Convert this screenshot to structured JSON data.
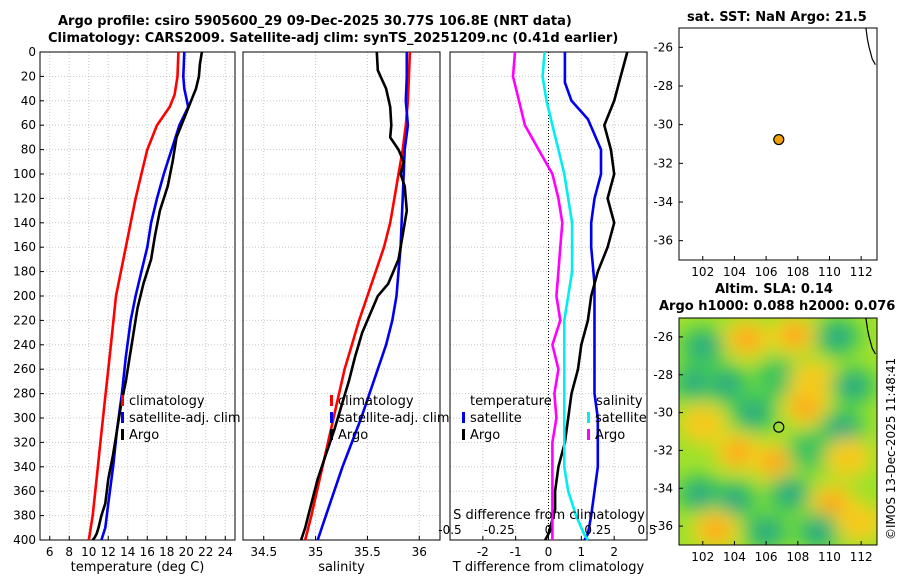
{
  "titles": {
    "line1": "Argo profile: csiro 5905600_29 09-Dec-2025 30.77S 106.8E (NRT data)",
    "line2": "Climatology: CARS2009. Satellite-adj clim: synTS_20251209.nc (0.41d earlier)",
    "sst": "sat. SST: NaN Argo: 21.5",
    "altim1": "Altim. SLA: 0.14",
    "altim2": "Argo h1000: 0.088 h2000: 0.076"
  },
  "credit": "©IMOS 13-Dec-2025 11:48:41",
  "colors": {
    "climatology": "#ff0000",
    "satellite": "#0000ee",
    "argo": "#000000",
    "temp_diff": "#00eeee",
    "sal_diff": "#ff00ff",
    "marker": "#f0a000"
  },
  "chart_data": [
    {
      "type": "line",
      "id": "temperature",
      "xlabel": "temperature (deg C)",
      "ylabel": "",
      "xlim": [
        5,
        25
      ],
      "ylim": [
        400,
        0
      ],
      "xticks": [
        "6",
        "8",
        "10",
        "12",
        "14",
        "16",
        "18",
        "20",
        "22",
        "24"
      ],
      "xtick_values": [
        6,
        8,
        10,
        12,
        14,
        16,
        18,
        20,
        22,
        24
      ],
      "yticks": [
        "0",
        "20",
        "40",
        "60",
        "80",
        "100",
        "120",
        "140",
        "160",
        "180",
        "200",
        "220",
        "240",
        "260",
        "280",
        "300",
        "320",
        "340",
        "360",
        "380",
        "400"
      ],
      "ytick_values": [
        0,
        20,
        40,
        60,
        80,
        100,
        120,
        140,
        160,
        180,
        200,
        220,
        240,
        260,
        280,
        300,
        320,
        340,
        360,
        380,
        400
      ],
      "legend": [
        "climatology",
        "satellite-adj. clim",
        "Argo"
      ],
      "series": [
        {
          "name": "climatology",
          "color": "#ff0000",
          "x": [
            19.2,
            19.1,
            18.8,
            18.3,
            17.0,
            16.0,
            15.4,
            14.8,
            14.3,
            13.8,
            13.3,
            12.8,
            12.4,
            12.0,
            11.6,
            11.2,
            10.8,
            10.4,
            10.0
          ],
          "depth": [
            0,
            20,
            35,
            45,
            60,
            80,
            100,
            120,
            140,
            160,
            180,
            200,
            230,
            260,
            290,
            320,
            350,
            380,
            400
          ]
        },
        {
          "name": "satellite-adj. clim",
          "color": "#0000ee",
          "x": [
            19.8,
            19.7,
            19.8,
            20.2,
            19.3,
            18.5,
            17.7,
            17.0,
            16.4,
            16.0,
            15.4,
            14.8,
            14.3,
            13.8,
            13.4,
            12.9,
            12.5,
            12.0,
            11.7,
            11.3
          ],
          "depth": [
            0,
            20,
            30,
            45,
            60,
            80,
            100,
            120,
            140,
            160,
            180,
            200,
            220,
            250,
            280,
            310,
            340,
            370,
            390,
            400
          ]
        },
        {
          "name": "Argo",
          "color": "#000000",
          "x": [
            21.6,
            21.4,
            21.3,
            21.0,
            20.5,
            20.0,
            19.0,
            18.6,
            18.1,
            17.3,
            16.8,
            16.4,
            15.6,
            15.0,
            14.6,
            14.2,
            13.8,
            13.3,
            12.9,
            12.5,
            12.0,
            11.7,
            11.3,
            11.0,
            10.8,
            10.6,
            10.4
          ],
          "depth": [
            0,
            10,
            20,
            30,
            40,
            50,
            70,
            90,
            110,
            130,
            150,
            170,
            190,
            210,
            230,
            250,
            270,
            290,
            310,
            330,
            350,
            370,
            380,
            390,
            395,
            398,
            400
          ]
        }
      ]
    },
    {
      "type": "line",
      "id": "salinity",
      "xlabel": "salinity",
      "xlim": [
        34.3,
        36.2
      ],
      "ylim": [
        400,
        0
      ],
      "xticks": [
        "34.5",
        "35",
        "35.5",
        "36"
      ],
      "xtick_values": [
        34.5,
        35,
        35.5,
        36
      ],
      "legend": [
        "climatology",
        "satellite-adj. clim",
        "Argo"
      ],
      "series": [
        {
          "name": "climatology",
          "color": "#ff0000",
          "x": [
            35.91,
            35.9,
            35.89,
            35.87,
            35.84,
            35.8,
            35.76,
            35.72,
            35.66,
            35.58,
            35.5,
            35.42,
            35.35,
            35.28,
            35.2,
            35.12,
            35.04,
            34.96,
            34.9
          ],
          "depth": [
            0,
            20,
            40,
            60,
            80,
            100,
            120,
            140,
            160,
            180,
            200,
            220,
            240,
            260,
            290,
            320,
            350,
            380,
            400
          ]
        },
        {
          "name": "satellite-adj. clim",
          "color": "#0000ee",
          "x": [
            35.88,
            35.88,
            35.87,
            35.89,
            35.86,
            35.85,
            35.84,
            35.83,
            35.82,
            35.8,
            35.78,
            35.74,
            35.68,
            35.6,
            35.52,
            35.44,
            35.35,
            35.26,
            35.18,
            35.1,
            35.02
          ],
          "depth": [
            0,
            20,
            40,
            60,
            80,
            100,
            120,
            140,
            160,
            180,
            200,
            220,
            240,
            260,
            280,
            300,
            320,
            340,
            360,
            380,
            400
          ]
        },
        {
          "name": "Argo",
          "color": "#000000",
          "x": [
            35.59,
            35.6,
            35.68,
            35.72,
            35.73,
            35.72,
            35.8,
            35.85,
            35.82,
            35.86,
            35.88,
            35.84,
            35.8,
            35.7,
            35.6,
            35.55,
            35.45,
            35.38,
            35.32,
            35.25,
            35.18,
            35.1,
            35.02,
            34.96,
            34.9,
            34.86
          ],
          "depth": [
            0,
            15,
            30,
            45,
            60,
            70,
            80,
            90,
            100,
            110,
            130,
            150,
            170,
            190,
            200,
            210,
            230,
            250,
            270,
            290,
            310,
            330,
            350,
            370,
            390,
            400
          ]
        }
      ]
    },
    {
      "type": "line",
      "id": "difference",
      "xlabel": "T difference from climatology",
      "top_axis_label": "S difference from climatology",
      "xlim": [
        -3,
        3
      ],
      "ylim": [
        400,
        0
      ],
      "xticks": [
        "-2",
        "-1",
        "0",
        "1",
        "2"
      ],
      "xtick_values": [
        -2,
        -1,
        0,
        1,
        2
      ],
      "sal_xticks": [
        "-0.5",
        "-0.25",
        "0",
        "0.25",
        "0.5"
      ],
      "sal_xtick_values": [
        -0.5,
        -0.25,
        0,
        0.25,
        0.5
      ],
      "legend_temperature_title": "temperature",
      "legend_salinity_title": "salinity",
      "legend_temperature": [
        "satellite",
        "Argo"
      ],
      "legend_salinity": [
        "satellite",
        "Argo"
      ],
      "series": [
        {
          "name": "T satellite",
          "color": "#0000ee",
          "x": [
            0.5,
            0.5,
            0.5,
            0.7,
            1.2,
            1.6,
            1.6,
            1.4,
            1.3,
            1.3,
            1.4,
            1.4,
            1.4,
            1.4,
            1.5,
            1.5,
            1.5,
            1.4,
            1.3,
            1.2,
            1.1
          ],
          "depth": [
            0,
            10,
            25,
            40,
            55,
            80,
            100,
            120,
            140,
            160,
            190,
            220,
            250,
            280,
            300,
            320,
            340,
            360,
            380,
            395,
            400
          ]
        },
        {
          "name": "T Argo",
          "color": "#000000",
          "x": [
            2.4,
            2.2,
            2.0,
            1.7,
            1.9,
            2.0,
            1.8,
            2.0,
            1.8,
            1.5,
            1.3,
            1.2,
            1.0,
            0.9,
            0.7,
            0.6,
            0.5,
            0.3,
            0.2,
            0.2,
            0.1,
            0.0,
            -0.1
          ],
          "depth": [
            0,
            20,
            40,
            60,
            80,
            100,
            120,
            140,
            160,
            180,
            200,
            220,
            240,
            260,
            280,
            300,
            320,
            340,
            360,
            375,
            385,
            395,
            400
          ]
        },
        {
          "name": "S satellite",
          "color": "#00eeee",
          "x": [
            -0.02,
            -0.03,
            -0.01,
            0.02,
            0.05,
            0.08,
            0.1,
            0.12,
            0.12,
            0.12,
            0.1,
            0.08,
            0.08,
            0.08,
            0.08,
            0.08,
            0.08,
            0.08,
            0.1,
            0.14,
            0.18,
            0.2
          ],
          "depth": [
            0,
            20,
            40,
            60,
            80,
            100,
            120,
            140,
            160,
            180,
            200,
            220,
            240,
            260,
            280,
            300,
            320,
            340,
            360,
            380,
            395,
            400
          ]
        },
        {
          "name": "S Argo",
          "color": "#ff00ff",
          "x": [
            -0.17,
            -0.18,
            -0.15,
            -0.12,
            -0.05,
            0.02,
            0.05,
            0.07,
            0.06,
            0.05,
            0.04,
            0.06,
            0.02,
            0.05,
            0.03,
            0.04,
            0.02,
            0.02,
            0.02,
            0.02
          ],
          "depth": [
            0,
            20,
            40,
            60,
            80,
            100,
            120,
            140,
            160,
            180,
            200,
            220,
            240,
            260,
            280,
            300,
            320,
            340,
            360,
            400
          ]
        }
      ]
    },
    {
      "type": "scatter",
      "id": "sst_map",
      "xlim": [
        100.5,
        113
      ],
      "ylim": [
        -37,
        -25
      ],
      "xticks": [
        "102",
        "104",
        "106",
        "108",
        "110",
        "112"
      ],
      "xtick_values": [
        102,
        104,
        106,
        108,
        110,
        112
      ],
      "yticks": [
        "-26",
        "-28",
        "-30",
        "-32",
        "-34",
        "-36"
      ],
      "ytick_values": [
        -26,
        -28,
        -30,
        -32,
        -34,
        -36
      ],
      "points": [
        {
          "lon": 106.8,
          "lat": -30.77
        }
      ],
      "coast_lon": [
        112.3,
        112.4,
        112.5,
        112.6,
        112.7,
        112.9
      ],
      "coast_lat": [
        -25.0,
        -25.6,
        -26.0,
        -26.3,
        -26.6,
        -26.9
      ]
    },
    {
      "type": "heatmap",
      "id": "sla_map",
      "xlim": [
        100.5,
        113
      ],
      "ylim": [
        -37,
        -25
      ],
      "xticks": [
        "102",
        "104",
        "106",
        "108",
        "110",
        "112"
      ],
      "xtick_values": [
        102,
        104,
        106,
        108,
        110,
        112
      ],
      "yticks": [
        "-26",
        "-28",
        "-30",
        "-32",
        "-34",
        "-36"
      ],
      "ytick_values": [
        -26,
        -28,
        -30,
        -32,
        -34,
        -36
      ],
      "points": [
        {
          "lon": 106.8,
          "lat": -30.77
        }
      ],
      "blobs": [
        {
          "lon": 102.0,
          "lat": -26.5,
          "v": -1
        },
        {
          "lon": 104.8,
          "lat": -26.1,
          "v": 1
        },
        {
          "lon": 107.8,
          "lat": -25.9,
          "v": 1
        },
        {
          "lon": 110.5,
          "lat": -26.0,
          "v": -1
        },
        {
          "lon": 101.5,
          "lat": -28.4,
          "v": -1
        },
        {
          "lon": 103.5,
          "lat": -28.5,
          "v": -1
        },
        {
          "lon": 106.8,
          "lat": -28.2,
          "v": -0.5
        },
        {
          "lon": 109.0,
          "lat": -28.3,
          "v": 0.7
        },
        {
          "lon": 111.5,
          "lat": -28.6,
          "v": -1
        },
        {
          "lon": 105.2,
          "lat": -30.0,
          "v": -1
        },
        {
          "lon": 108.5,
          "lat": -29.7,
          "v": 1
        },
        {
          "lon": 110.8,
          "lat": -30.8,
          "v": -0.8
        },
        {
          "lon": 102.0,
          "lat": -30.6,
          "v": 0.5
        },
        {
          "lon": 104.2,
          "lat": -32.1,
          "v": 1
        },
        {
          "lon": 106.5,
          "lat": -32.6,
          "v": 1
        },
        {
          "lon": 108.8,
          "lat": -32.0,
          "v": -0.7
        },
        {
          "lon": 111.2,
          "lat": -32.4,
          "v": 0.6
        },
        {
          "lon": 101.8,
          "lat": -34.3,
          "v": -1
        },
        {
          "lon": 104.0,
          "lat": -34.6,
          "v": -0.8
        },
        {
          "lon": 107.5,
          "lat": -34.3,
          "v": -1
        },
        {
          "lon": 110.2,
          "lat": -34.8,
          "v": 1
        },
        {
          "lon": 102.8,
          "lat": -36.2,
          "v": 0.8
        },
        {
          "lon": 106.0,
          "lat": -36.3,
          "v": -1
        },
        {
          "lon": 109.3,
          "lat": -36.3,
          "v": -1
        },
        {
          "lon": 111.9,
          "lat": -35.8,
          "v": 0.6
        }
      ]
    }
  ]
}
